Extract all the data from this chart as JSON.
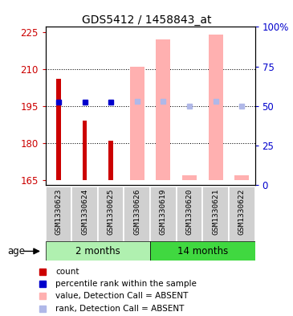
{
  "title": "GDS5412 / 1458843_at",
  "samples": [
    "GSM1330623",
    "GSM1330624",
    "GSM1330625",
    "GSM1330626",
    "GSM1330619",
    "GSM1330620",
    "GSM1330621",
    "GSM1330622"
  ],
  "ylim_left": [
    163,
    227
  ],
  "yticks_left": [
    165,
    180,
    195,
    210,
    225
  ],
  "yticks_right": [
    0,
    25,
    50,
    75,
    100
  ],
  "ytick_labels_right": [
    "0",
    "25",
    "50",
    "75",
    "100%"
  ],
  "red_values": [
    206,
    189,
    181,
    null,
    null,
    null,
    null,
    null
  ],
  "pink_values": [
    null,
    null,
    null,
    211,
    222,
    167,
    224,
    167
  ],
  "blue_values": [
    196.5,
    196.5,
    196.5,
    null,
    null,
    null,
    null,
    null
  ],
  "light_blue_values": [
    null,
    null,
    null,
    197,
    197,
    195,
    197,
    195
  ],
  "base_value": 165,
  "red_color": "#cc0000",
  "pink_color": "#ffb0b0",
  "blue_color": "#0000cc",
  "light_blue_color": "#b0b8e8",
  "grey_bg": "#d0d0d0",
  "group1_color": "#b0f0b0",
  "group2_color": "#40d840",
  "legend_items": [
    {
      "label": "count",
      "color": "#cc0000"
    },
    {
      "label": "percentile rank within the sample",
      "color": "#0000cc"
    },
    {
      "label": "value, Detection Call = ABSENT",
      "color": "#ffb0b0"
    },
    {
      "label": "rank, Detection Call = ABSENT",
      "color": "#b0b8e8"
    }
  ],
  "age_label": "age"
}
